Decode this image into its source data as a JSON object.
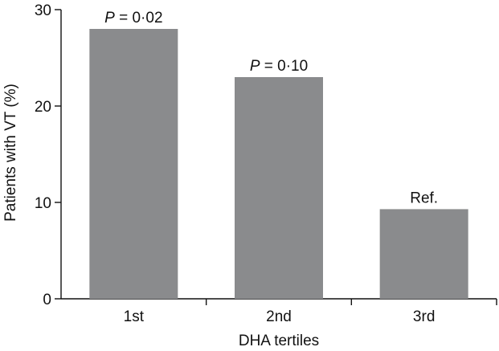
{
  "chart_data": {
    "type": "bar",
    "categories": [
      "1st",
      "2nd",
      "3rd"
    ],
    "values": [
      28,
      23,
      9.3
    ],
    "bar_labels": [
      {
        "italic": "P",
        "text": " = 0·02"
      },
      {
        "italic": "P",
        "text": " = 0·10"
      },
      {
        "italic": "",
        "text": "Ref."
      }
    ],
    "xlabel": "DHA tertiles",
    "ylabel": "Patients with VT (%)",
    "ylim": [
      0,
      30
    ],
    "yticks": [
      0,
      10,
      20,
      30
    ],
    "grid": false,
    "bar_color": "#8a8b8d"
  }
}
